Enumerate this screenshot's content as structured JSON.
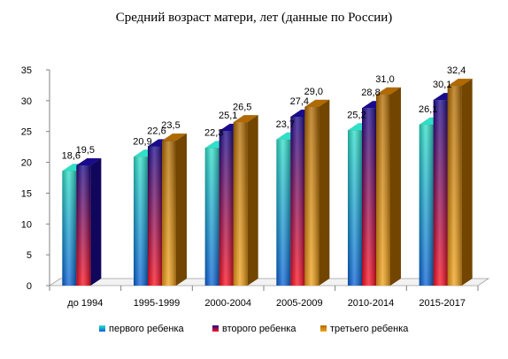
{
  "chart_data": {
    "type": "bar",
    "title": "Средний возраст матери, лет (данные по России)",
    "xlabel": "",
    "ylabel": "",
    "ylim": [
      0,
      35
    ],
    "yticks": [
      0,
      5,
      10,
      15,
      20,
      25,
      30,
      35
    ],
    "grid": false,
    "legend_position": "bottom",
    "categories": [
      "до 1994",
      "1995-1999",
      "2000-2004",
      "2005-2009",
      "2010-2014",
      "2015-2017"
    ],
    "series": [
      {
        "name": "первого ребенка",
        "values": [
          18.6,
          20.9,
          22.3,
          23.7,
          25.2,
          26.1
        ],
        "labels": [
          "18,6",
          "20,9",
          "22,3",
          "23,7",
          "25,2",
          "26,1"
        ],
        "color_top": "#2fe0c8",
        "color_bottom": "#0a63d8"
      },
      {
        "name": "второго ребенка",
        "values": [
          19.5,
          22.6,
          25.1,
          27.4,
          28.8,
          30.1
        ],
        "labels": [
          "19,5",
          "22,6",
          "25,1",
          "27,4",
          "28,8",
          "30,1"
        ],
        "color_top": "#1a0a8c",
        "color_bottom": "#ff1020"
      },
      {
        "name": "третьего ребенка",
        "values": [
          null,
          23.5,
          26.5,
          29.0,
          31.0,
          32.4
        ],
        "labels": [
          "",
          "23,5",
          "26,5",
          "29,0",
          "31,0",
          "32,4"
        ],
        "color_top": "#b06a00",
        "color_bottom": "#f2a21a"
      }
    ]
  }
}
